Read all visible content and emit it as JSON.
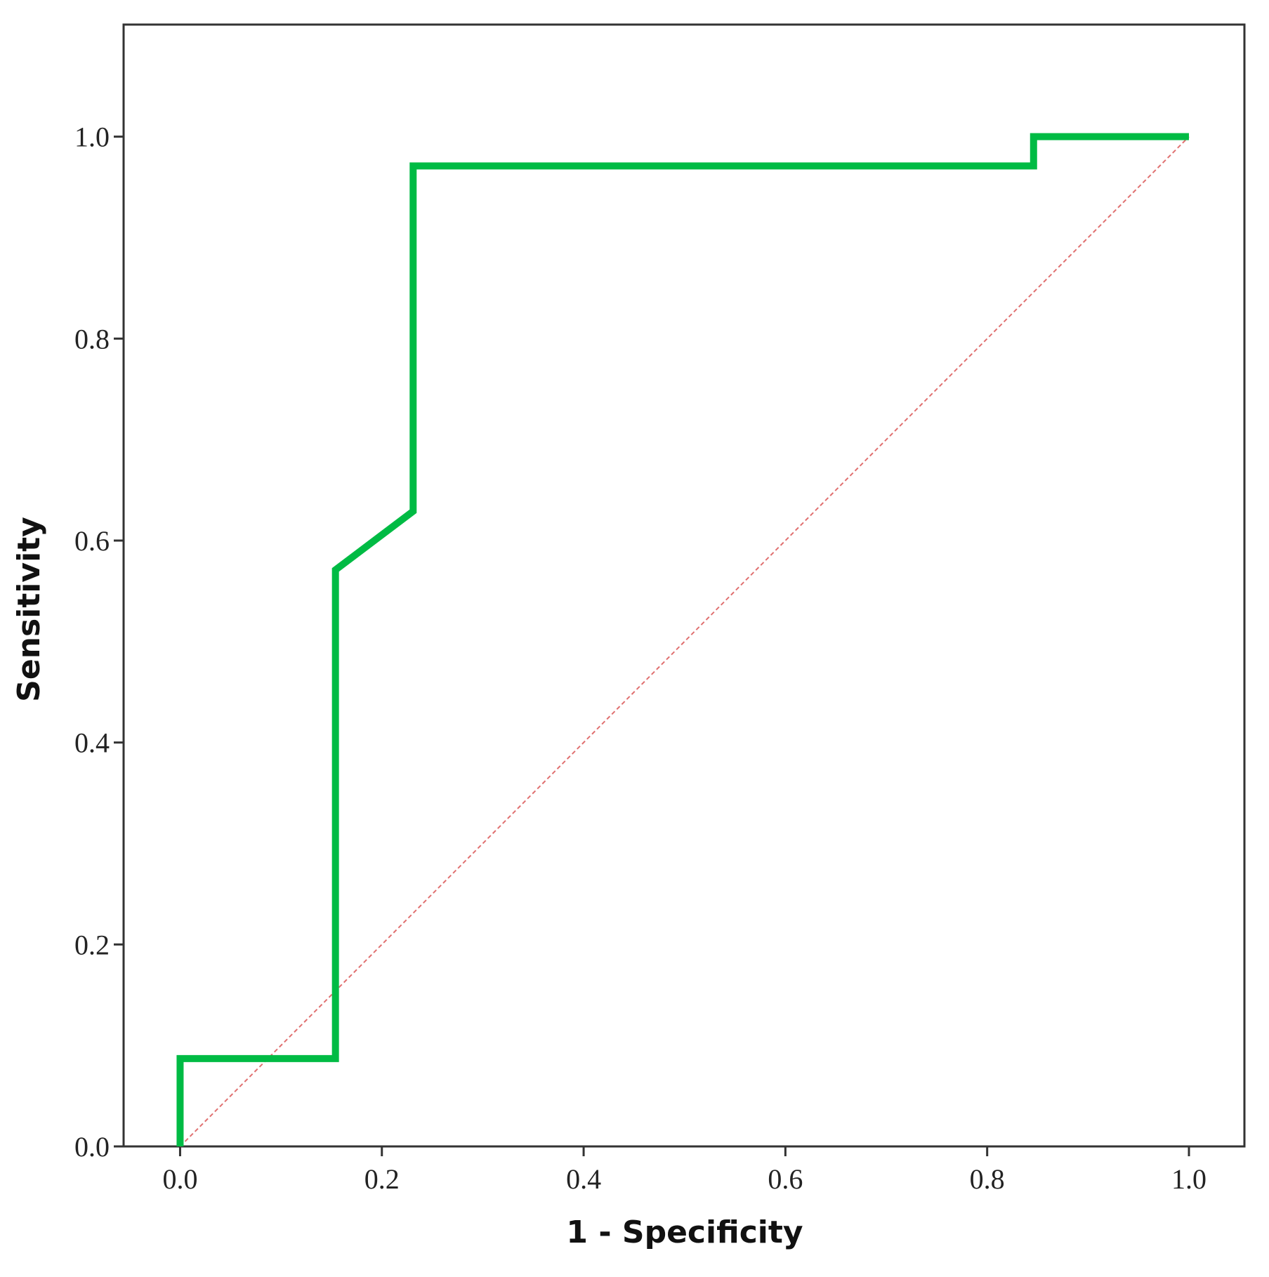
{
  "chart_data": {
    "type": "line",
    "x_label": "1 - Specificity",
    "y_label": "Sensitivity",
    "series": [
      {
        "color": "#00bb44",
        "x": [
          0,
          0,
          0.154,
          0.154,
          0.231,
          0.231,
          0.846,
          0.846,
          1
        ],
        "values": [
          0,
          0.087,
          0.087,
          0.571,
          0.629,
          0.971,
          0.971,
          1,
          1
        ]
      },
      {
        "color": "#e07070",
        "dashed": true,
        "x": [
          0,
          1
        ],
        "values": [
          0,
          1
        ]
      }
    ],
    "xlim": [
      -0.056,
      1.055
    ],
    "ylim": [
      0,
      1.111
    ],
    "xticks": [
      {
        "value": 0,
        "label": "0.0"
      },
      0.2,
      0.4,
      0.6,
      0.8,
      {
        "value": 1,
        "label": "1.0"
      }
    ],
    "yticks": [
      {
        "value": 0,
        "label": "0.0"
      },
      0.2,
      0.4,
      0.6,
      0.8,
      {
        "value": 1,
        "label": "1.0"
      }
    ],
    "grid": false
  }
}
